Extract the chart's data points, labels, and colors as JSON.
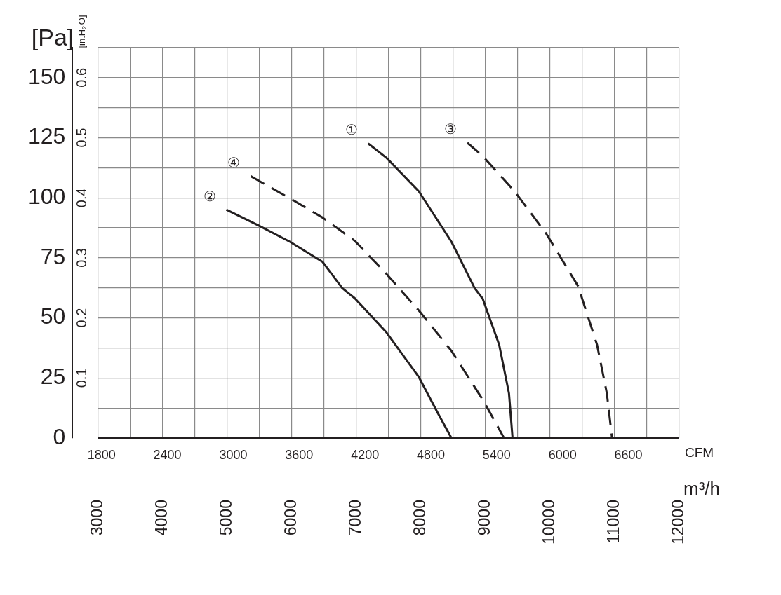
{
  "chart_data": {
    "type": "line",
    "ylabel": "[Pa]",
    "y2label": "[in.H$_{2}$O]",
    "xlabel": "m³/h",
    "x2label": "CFM",
    "xlim": [
      3000,
      12000
    ],
    "xticks": [
      3000,
      {
        "value": 3500,
        "label": null
      },
      4000,
      {
        "value": 4500,
        "label": null
      },
      5000,
      {
        "value": 5500,
        "label": null
      },
      6000,
      {
        "value": 6500,
        "label": null
      },
      7000,
      {
        "value": 7500,
        "label": null
      },
      8000,
      {
        "value": 8500,
        "label": null
      },
      9000,
      {
        "value": 9500,
        "label": null
      },
      10000,
      {
        "value": 10500,
        "label": null
      },
      11000,
      {
        "value": 11500,
        "label": null
      },
      12000
    ],
    "x2lim": [
      1766,
      7063
    ],
    "x2ticks": [
      1800,
      2400,
      3000,
      3600,
      4200,
      4800,
      5400,
      6000,
      6600
    ],
    "ylim": [
      0,
      162.5
    ],
    "yticks": [
      0,
      {
        "value": 12.5,
        "label": null
      },
      25,
      {
        "value": 37.5,
        "label": null
      },
      50,
      {
        "value": 62.5,
        "label": null
      },
      75,
      {
        "value": 87.5,
        "label": null
      },
      100,
      {
        "value": 112.5,
        "label": null
      },
      125,
      {
        "value": 137.5,
        "label": null
      },
      150,
      {
        "value": 162.5,
        "label": null
      }
    ],
    "y2lim": [
      0,
      0.65
    ],
    "y2ticks": [
      0.1,
      0.2,
      0.3,
      0.4,
      0.5,
      0.6
    ],
    "grid": true,
    "legend": false,
    "marker": "none",
    "series": [
      {
        "name": "①",
        "color": "#231f20",
        "line_style": "solid",
        "x": [
          7185,
          7470,
          7969,
          8474,
          8833,
          8958,
          9213,
          9364,
          9420
        ],
        "values": [
          122.6,
          116.6,
          102.7,
          81.7,
          62.4,
          58,
          38.8,
          18.7,
          0
        ]
      },
      {
        "name": "②",
        "color": "#231f20",
        "line_style": "solid",
        "x": [
          4989,
          5481,
          5974,
          6477,
          6784,
          6977,
          7470,
          7969,
          8265,
          8474
        ],
        "values": [
          95.1,
          88.6,
          81.7,
          73.4,
          62.4,
          58.2,
          43.9,
          25.4,
          10.3,
          0
        ]
      },
      {
        "name": "③",
        "color": "#231f20",
        "line_style": "dashed",
        "x": [
          8720,
          8958,
          9451,
          9943,
          10435,
          10728,
          10879,
          10960
        ],
        "values": [
          122.9,
          117.4,
          102.7,
          85,
          63.2,
          38.8,
          18.7,
          0
        ]
      },
      {
        "name": "④",
        "color": "#231f20",
        "line_style": "dashed",
        "x": [
          5367,
          6030,
          6477,
          6977,
          7470,
          7969,
          8474,
          8974,
          9288
        ],
        "values": [
          109,
          98.9,
          91.8,
          82.1,
          68.3,
          53.1,
          36.3,
          15.3,
          0
        ]
      }
    ]
  }
}
